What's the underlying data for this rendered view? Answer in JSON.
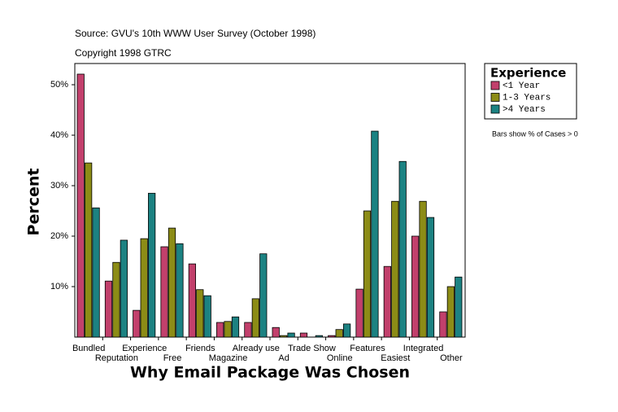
{
  "chart_data": {
    "type": "bar",
    "title": "Source: GVU's 10th WWW User Survey (October 1998)",
    "subtitle": "Copyright 1998 GTRC",
    "note": "Bars show % of Cases > 0",
    "legend_title": "Experience",
    "xlabel": "Why Email Package Was Chosen",
    "ylabel": "Percent",
    "categories": [
      "Bundled",
      "Reputation",
      "Experience",
      "Free",
      "Friends",
      "Magazine",
      "Already use",
      "Ad",
      "Trade Show",
      "Online",
      "Features",
      "Easiest",
      "Integrated",
      "Other"
    ],
    "series": [
      {
        "name": "<1 Year",
        "color": "#c2406c",
        "values": [
          52.1,
          11.1,
          5.3,
          17.9,
          14.5,
          2.9,
          2.9,
          1.9,
          0.8,
          0.3,
          9.5,
          14.0,
          20.0,
          5.0
        ]
      },
      {
        "name": "1-3 Years",
        "color": "#8c8c16",
        "values": [
          34.5,
          14.8,
          19.5,
          21.6,
          9.4,
          3.1,
          7.6,
          0.3,
          0,
          1.5,
          25.0,
          26.9,
          26.9,
          10.0
        ]
      },
      {
        "name": ">4 Years",
        "color": "#1c8282",
        "values": [
          25.6,
          19.2,
          28.5,
          18.5,
          8.2,
          4.0,
          16.5,
          0.8,
          0.3,
          2.6,
          40.8,
          34.8,
          23.7,
          11.9
        ]
      }
    ],
    "ylim": [
      0,
      54.2
    ],
    "yticks": [
      {
        "value": 10,
        "label": "10%"
      },
      {
        "value": 20,
        "label": "20%"
      },
      {
        "value": 30,
        "label": "30%"
      },
      {
        "value": 40,
        "label": "40%"
      },
      {
        "value": 50,
        "label": "50%"
      }
    ],
    "legend_position": "right"
  }
}
